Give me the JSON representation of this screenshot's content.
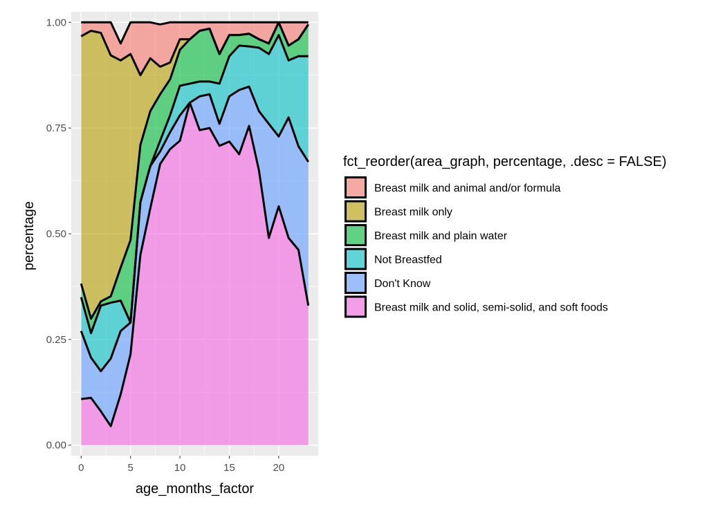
{
  "chart_data": {
    "type": "area",
    "stacked": true,
    "xlabel": "age_months_factor",
    "ylabel": "percentage",
    "xlim": [
      -1,
      24
    ],
    "ylim": [
      -0.025,
      1.025
    ],
    "x_ticks": [
      0,
      5,
      10,
      15,
      20
    ],
    "y_ticks": [
      0,
      0.25,
      0.5,
      0.75,
      1
    ],
    "x_tick_labels": [
      "0",
      "5",
      "10",
      "15",
      "20"
    ],
    "y_tick_labels": [
      "0.00",
      "0.25",
      "0.50",
      "0.75",
      "1.00"
    ],
    "grid": true,
    "legend": {
      "position": "right",
      "title": "fct_reorder(area_graph, percentage, .desc = FALSE)",
      "entries": [
        "Breast milk and animal and/or formula",
        "Breast milk only",
        "Breast milk and plain water",
        "Not Breastfed",
        "Don't Know",
        "Breast milk and solid, semi-solid, and soft foods"
      ]
    },
    "colors": {
      "Breast milk and animal and/or formula": "#F8766D",
      "Breast milk only": "#B79F00",
      "Breast milk and plain water": "#00BA38",
      "Not Breastfed": "#00BFC4",
      "Don't Know": "#619CFF",
      "Breast milk and solid, semi-solid, and soft foods": "#F564E3"
    },
    "x": [
      0,
      1,
      2,
      3,
      4,
      5,
      6,
      7,
      8,
      9,
      10,
      11,
      12,
      13,
      14,
      15,
      16,
      17,
      18,
      19,
      20,
      21,
      22,
      23
    ],
    "series": [
      {
        "name": "Breast milk and solid, semi-solid, and soft foods",
        "values": [
          0.109,
          0.112,
          0.08,
          0.045,
          0.12,
          0.215,
          0.45,
          0.56,
          0.665,
          0.7,
          0.72,
          0.81,
          0.745,
          0.75,
          0.708,
          0.718,
          0.688,
          0.755,
          0.65,
          0.49,
          0.565,
          0.49,
          0.462,
          0.33
        ]
      },
      {
        "name": "Don't Know",
        "values": [
          0.161,
          0.095,
          0.095,
          0.16,
          0.15,
          0.075,
          0.125,
          0.1,
          0.03,
          0.04,
          0.06,
          0.0,
          0.08,
          0.08,
          0.052,
          0.107,
          0.152,
          0.093,
          0.14,
          0.27,
          0.165,
          0.285,
          0.245,
          0.34
        ]
      },
      {
        "name": "Not Breastfed",
        "values": [
          0.08,
          0.058,
          0.155,
          0.132,
          0.072,
          0.0,
          0.0,
          0.0,
          0.025,
          0.04,
          0.07,
          0.045,
          0.035,
          0.03,
          0.095,
          0.095,
          0.105,
          0.095,
          0.15,
          0.165,
          0.24,
          0.135,
          0.213,
          0.25
        ]
      },
      {
        "name": "Breast milk and plain water",
        "values": [
          0.032,
          0.034,
          0.01,
          0.015,
          0.078,
          0.195,
          0.135,
          0.13,
          0.11,
          0.085,
          0.085,
          0.105,
          0.12,
          0.125,
          0.07,
          0.05,
          0.025,
          0.03,
          0.02,
          0.025,
          0.03,
          0.035,
          0.04,
          0.075
        ]
      },
      {
        "name": "Breast milk only",
        "values": [
          0.585,
          0.681,
          0.635,
          0.57,
          0.49,
          0.44,
          0.165,
          0.125,
          0.065,
          0.04,
          0.025,
          0.0,
          0.0,
          0.0,
          0.0,
          0.0,
          0.0,
          0.0,
          0.0,
          0.0,
          0.0,
          0.0,
          0.0,
          0.0
        ]
      },
      {
        "name": "Breast milk and animal and/or formula",
        "values": [
          0.033,
          0.02,
          0.025,
          0.078,
          0.04,
          0.075,
          0.125,
          0.085,
          0.1,
          0.095,
          0.04,
          0.04,
          0.02,
          0.015,
          0.075,
          0.03,
          0.03,
          0.027,
          0.04,
          0.05,
          0.0,
          0.055,
          0.04,
          0.005
        ]
      }
    ]
  }
}
